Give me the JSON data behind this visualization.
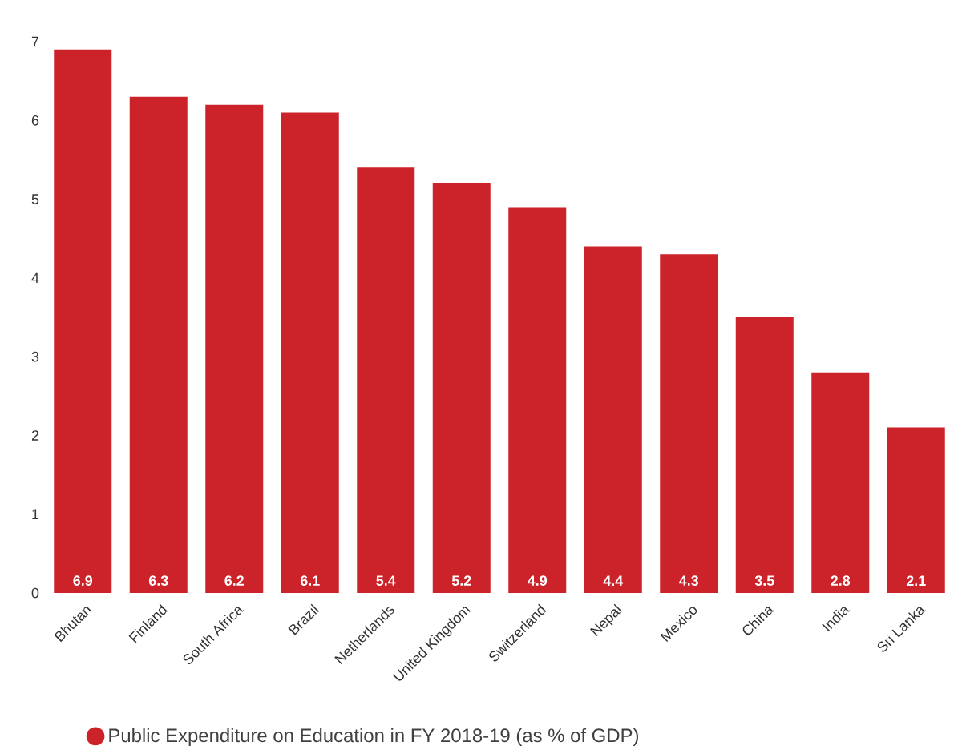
{
  "chart_data": {
    "type": "bar",
    "categories": [
      "Bhutan",
      "Finland",
      "South Africa",
      "Brazil",
      "Netherlands",
      "United Kingdom",
      "Switzerland",
      "Nepal",
      "Mexico",
      "China",
      "India",
      "Sri Lanka"
    ],
    "series": [
      {
        "name": "Public Expenditure on Education in FY 2018-19 (as % of GDP)",
        "color": "#cc2229",
        "values": [
          6.9,
          6.3,
          6.2,
          6.1,
          5.4,
          5.2,
          4.9,
          4.4,
          4.3,
          3.5,
          2.8,
          2.1
        ],
        "value_labels": [
          "6.9",
          "6.3",
          "6.2",
          "6.1",
          "5.4",
          "5.2",
          "4.9",
          "4.4",
          "4.3",
          "3.5",
          "2.8",
          "2.1"
        ]
      }
    ],
    "ylim": [
      0,
      7
    ],
    "yticks": [
      0,
      1,
      2,
      3,
      4,
      5,
      6,
      7
    ],
    "legend": "bottom"
  }
}
